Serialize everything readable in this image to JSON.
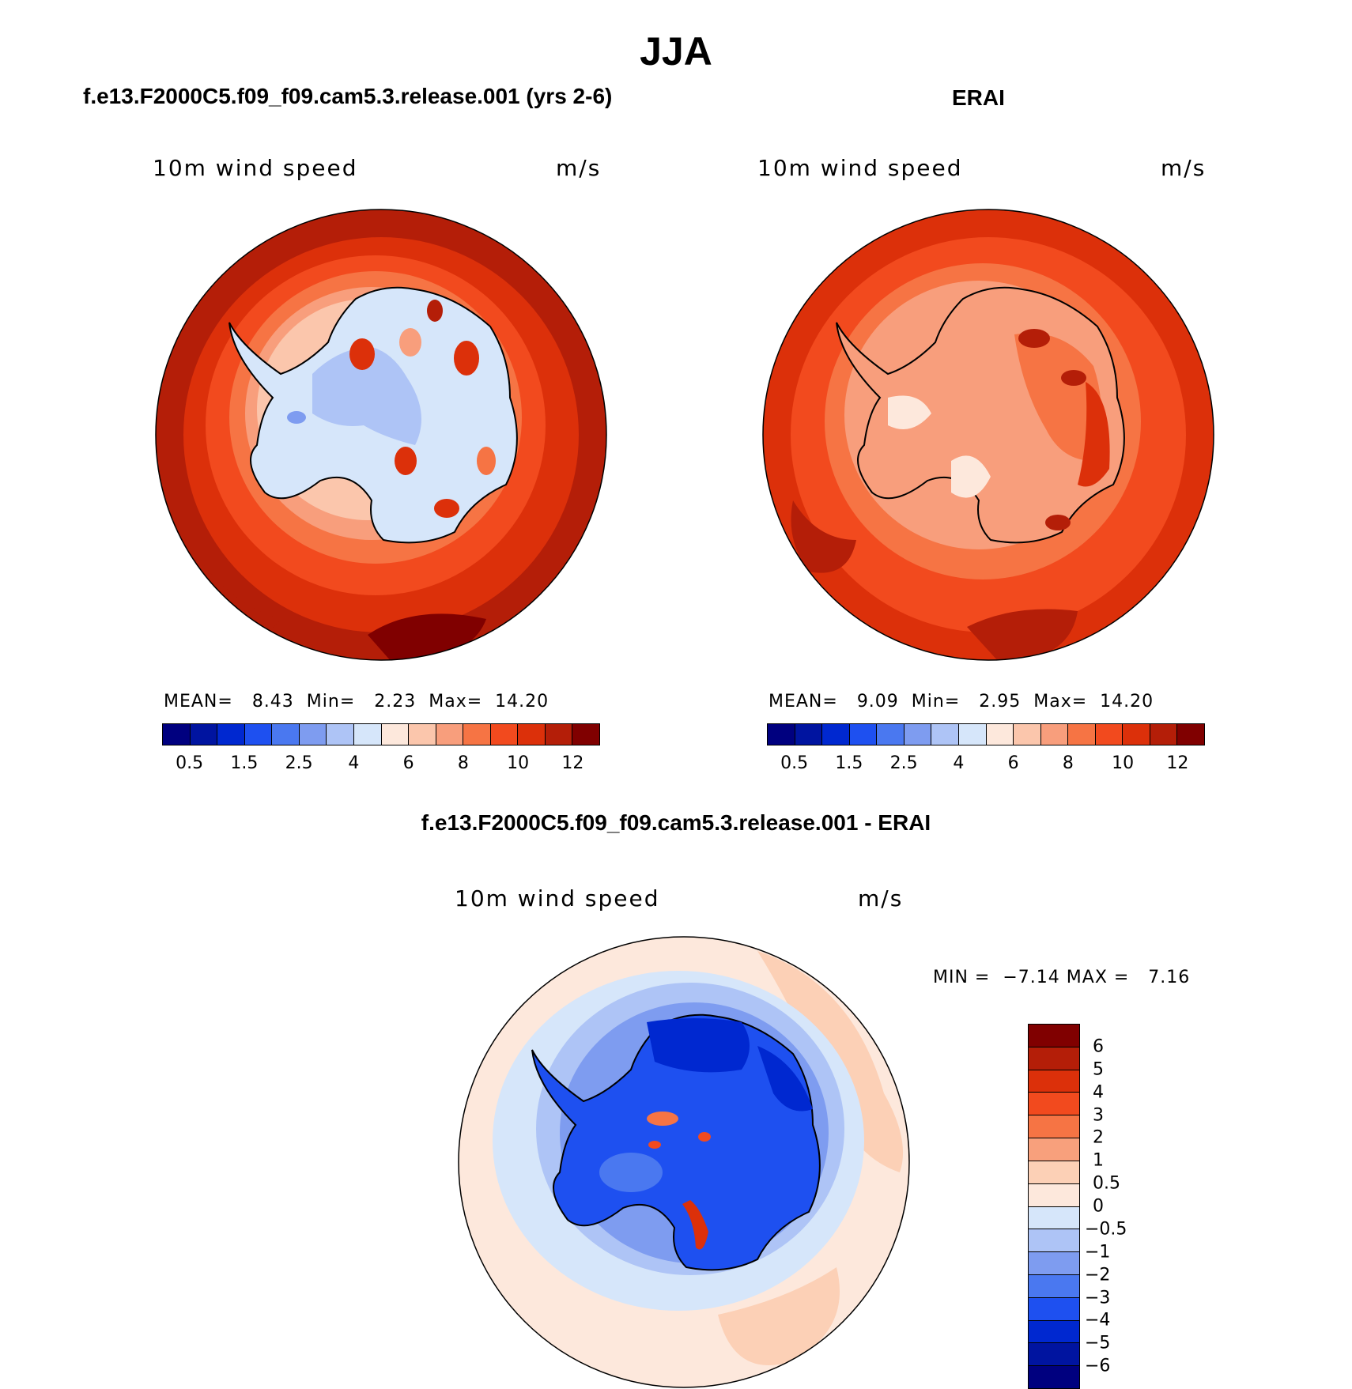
{
  "title": "JJA",
  "left_panel": {
    "case_title": "f.e13.F2000C5.f09_f09.cam5.3.release.001 (yrs 2-6)",
    "variable": "10m wind speed",
    "units": "m/s",
    "mean_label": "MEAN=",
    "mean_value": "8.43",
    "min_label": "Min=",
    "min_value": "2.23",
    "max_label": "Max=",
    "max_value": "14.20"
  },
  "right_panel": {
    "case_title": "ERAI",
    "variable": "10m wind speed",
    "units": "m/s",
    "mean_label": "MEAN=",
    "mean_value": "9.09",
    "min_label": "Min=",
    "min_value": "2.95",
    "max_label": "Max=",
    "max_value": "14.20"
  },
  "diff_panel": {
    "case_title": "f.e13.F2000C5.f09_f09.cam5.3.release.001 - ERAI",
    "variable": "10m wind speed",
    "units": "m/s",
    "min_label": "MIN =",
    "min_value": "−7.14",
    "max_label": "MAX =",
    "max_value": "7.16"
  },
  "abs_colorbar": {
    "colors": [
      "#00007f",
      "#0014a0",
      "#0028d0",
      "#1e50f0",
      "#4a78f0",
      "#7e9cf0",
      "#aec4f6",
      "#d6e6fa",
      "#fde8dc",
      "#fbc6ac",
      "#f89e7c",
      "#f67444",
      "#f24a1e",
      "#dc300a",
      "#b41e08",
      "#800000"
    ],
    "tick_labels": [
      "0.5",
      "1.5",
      "2.5",
      "4",
      "6",
      "8",
      "10",
      "12"
    ]
  },
  "diff_colorbar": {
    "colors": [
      "#800000",
      "#b41e08",
      "#dc300a",
      "#f24a1e",
      "#f67444",
      "#f8a07c",
      "#fcd0b6",
      "#fde8dc",
      "#d6e6fa",
      "#aec4f6",
      "#7e9cf0",
      "#4a78f0",
      "#1e50f0",
      "#0028d0",
      "#0014a0",
      "#00007f"
    ],
    "tick_labels": [
      "6",
      "5",
      "4",
      "3",
      "2",
      "1",
      "0.5",
      "0",
      "−0.5",
      "−1",
      "−2",
      "−3",
      "−4",
      "−5",
      "−6"
    ]
  }
}
